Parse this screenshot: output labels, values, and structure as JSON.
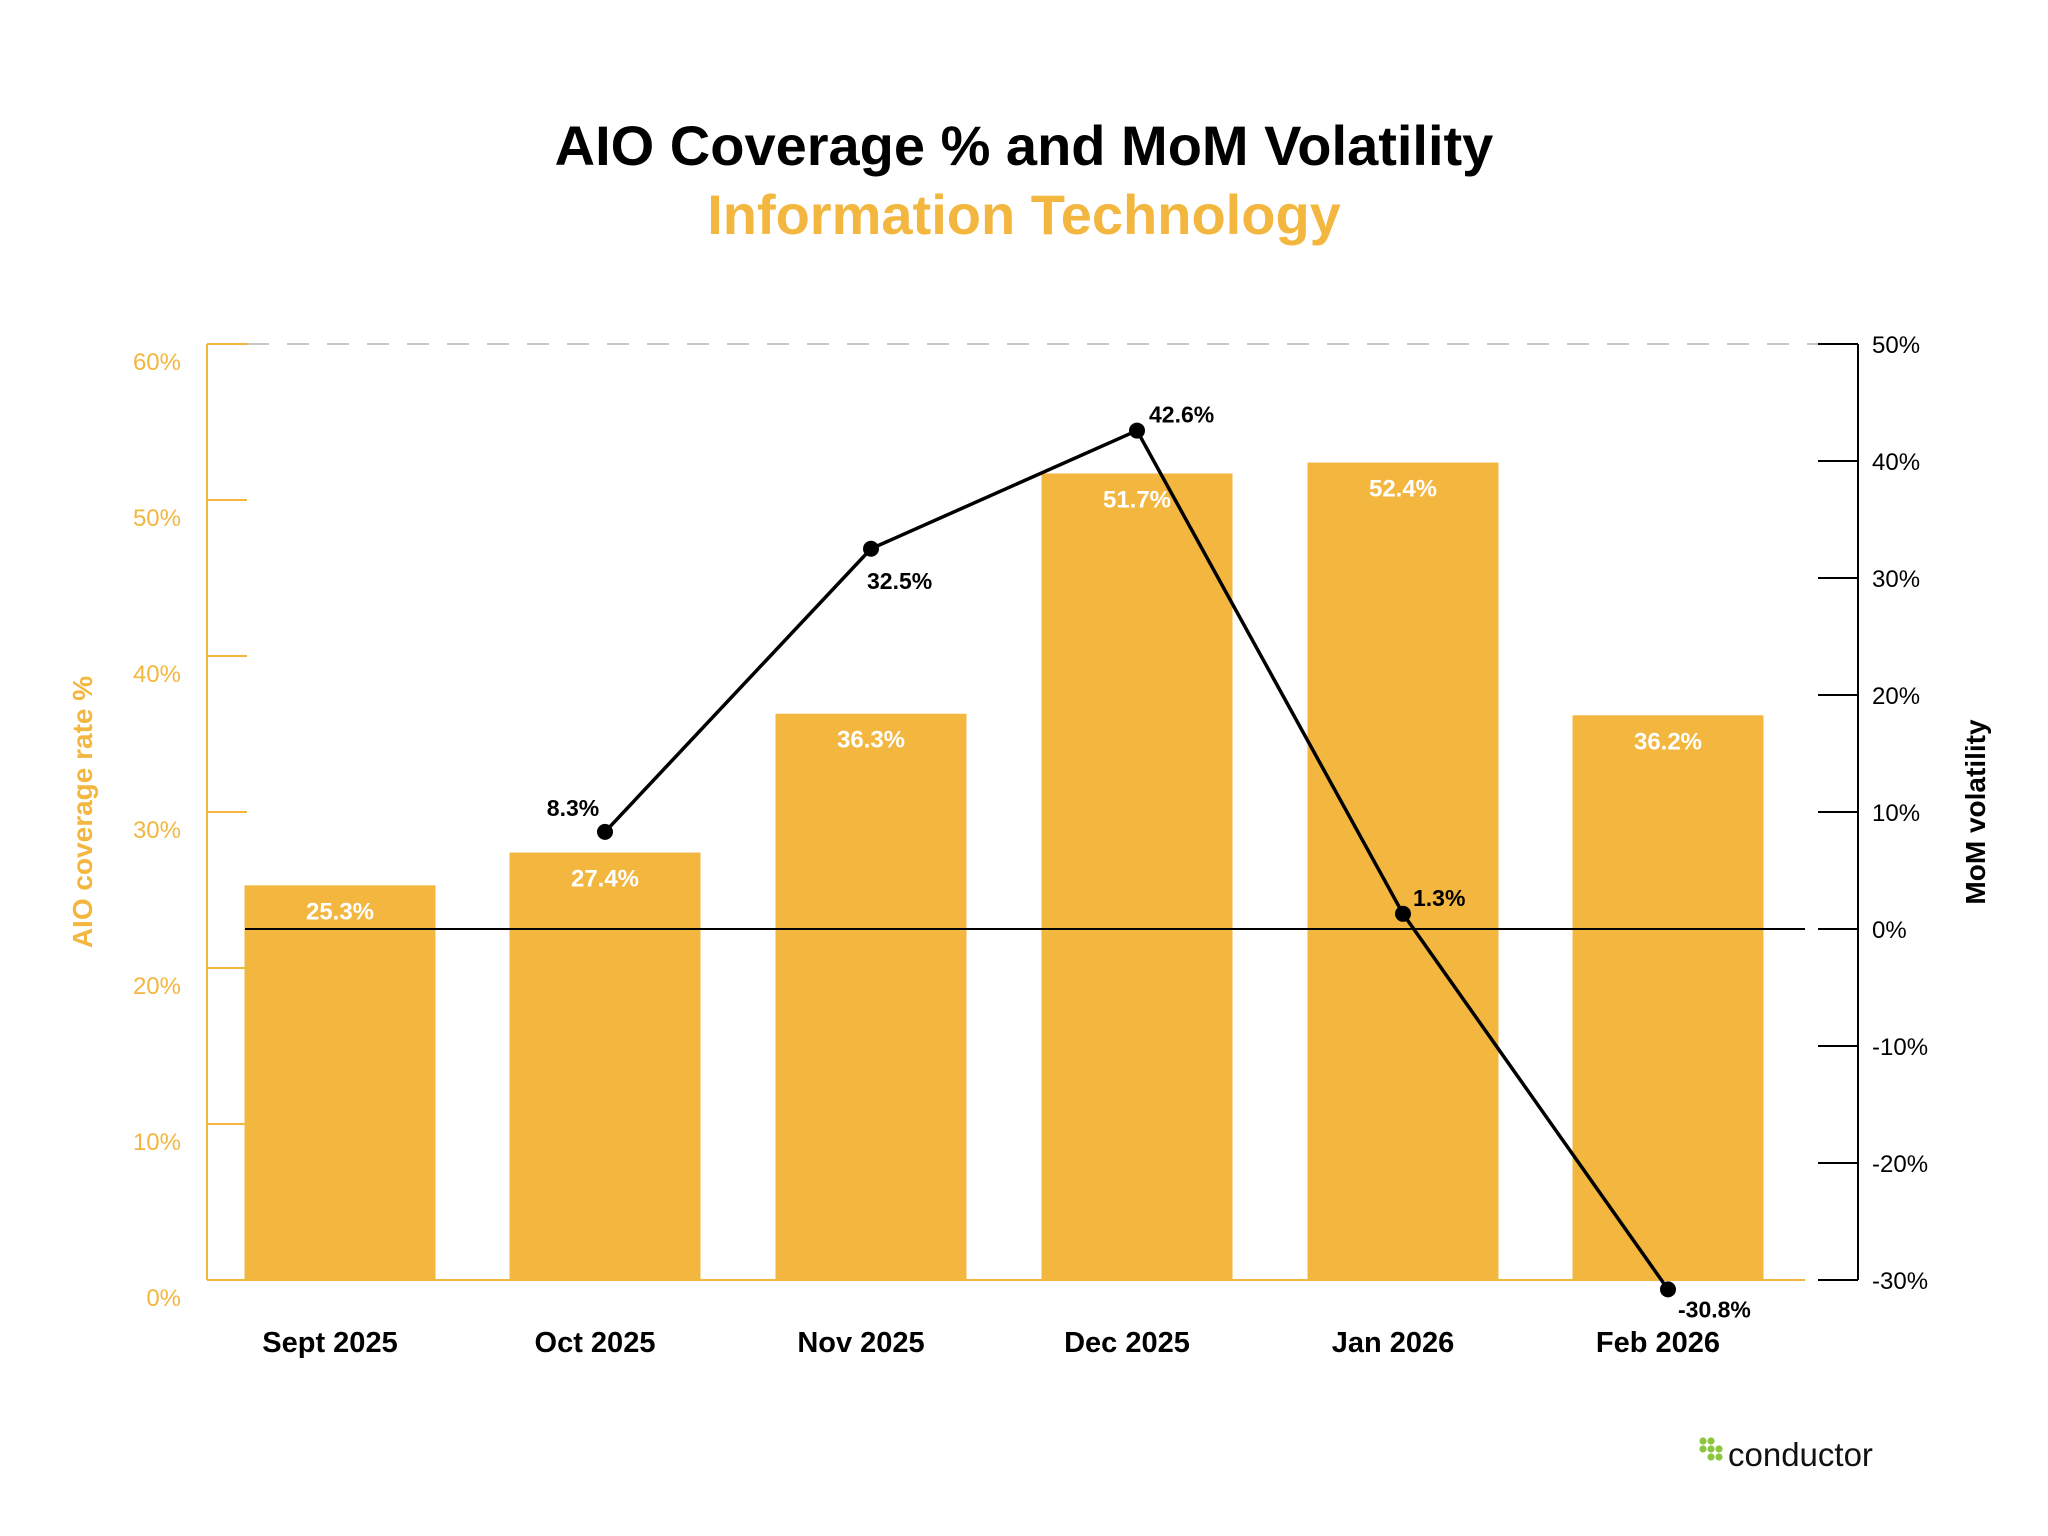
{
  "chart_data": {
    "type": "bar+line",
    "title": "AIO Coverage % and MoM Volatility",
    "subtitle": "Information Technology",
    "categories": [
      "Sept 2025",
      "Oct 2025",
      "Nov 2025",
      "Dec 2025",
      "Jan 2026",
      "Feb 2026"
    ],
    "bar_series": {
      "axis": "left",
      "values": [
        25.3,
        27.4,
        36.3,
        51.7,
        52.4,
        36.2
      ],
      "labels": [
        "25.3%",
        "27.4%",
        "36.3%",
        "51.7%",
        "52.4%",
        "36.2%"
      ],
      "color": "#F3B63F"
    },
    "line_series": {
      "axis": "right",
      "x": [
        "Oct 2025",
        "Nov 2025",
        "Dec 2025",
        "Jan 2026",
        "Feb 2026"
      ],
      "values": [
        8.3,
        32.5,
        42.6,
        1.3,
        -30.8
      ],
      "labels": [
        "8.3%",
        "32.5%",
        "42.6%",
        "1.3%",
        "-30.8%"
      ],
      "color": "#000000"
    },
    "left_axis": {
      "label": "AIO coverage rate %",
      "ylim": [
        0,
        60
      ],
      "ticks": [
        "0%",
        "10%",
        "20%",
        "30%",
        "40%",
        "50%",
        "60%"
      ],
      "color": "#F3B63F"
    },
    "right_axis": {
      "label": "MoM volatility",
      "ylim": [
        -30,
        50
      ],
      "ticks": [
        "-30%",
        "-20%",
        "-10%",
        "0%",
        "10%",
        "20%",
        "30%",
        "40%",
        "50%"
      ],
      "color": "#000000"
    },
    "grid": false
  },
  "branding": {
    "logo_text": "conductor",
    "logo_color": "#8CC63F"
  }
}
